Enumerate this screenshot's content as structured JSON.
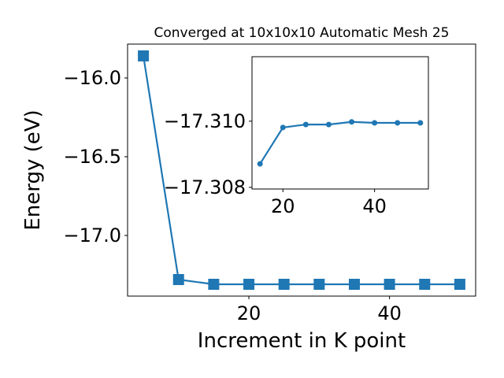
{
  "chart_data": [
    {
      "type": "line",
      "title": "Converged at 10x10x10 Automatic Mesh 25",
      "x_label": "Increment in K point",
      "y_label": "Energy (eV)",
      "x": [
        5,
        10,
        15,
        20,
        25,
        30,
        35,
        40,
        45,
        50
      ],
      "series": [
        {
          "color": "#1f77b4",
          "marker": "square",
          "values": [
            -15.86,
            -17.28,
            -17.31,
            -17.31,
            -17.31,
            -17.31,
            -17.31,
            -17.31,
            -17.31,
            -17.31
          ]
        }
      ],
      "xlim": [
        2.75,
        52.25
      ],
      "ylim": [
        -17.385,
        -15.785
      ],
      "xticks": [
        20,
        40
      ],
      "yticks": [
        {
          "value": -16.0,
          "label": "−16.0"
        },
        {
          "value": -16.5,
          "label": "−16.5"
        },
        {
          "value": -17.0,
          "label": "−17.0"
        }
      ]
    },
    {
      "type": "line",
      "x": [
        15,
        20,
        25,
        30,
        35,
        40,
        45,
        50
      ],
      "series": [
        {
          "color": "#1f77b4",
          "marker": "circle",
          "values": [
            -17.30871,
            -17.30981,
            -17.3099,
            -17.3099,
            -17.30998,
            -17.30995,
            -17.30995,
            -17.30995
          ]
        }
      ],
      "xlim": [
        13.25,
        51.75
      ],
      "ylim": [
        -17.30795,
        -17.31195
      ],
      "xticks": [
        20,
        40
      ],
      "yticks": [
        {
          "value": -17.31,
          "label": "−17.310"
        },
        {
          "value": -17.308,
          "label": "−17.308"
        }
      ]
    }
  ]
}
